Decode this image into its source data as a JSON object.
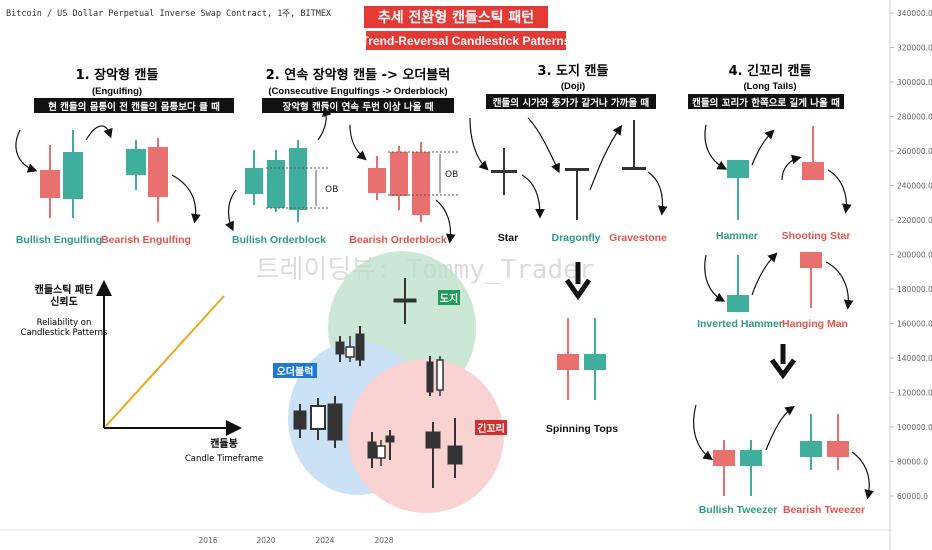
{
  "header": {
    "symbol_line": "Bitcoin / US Dollar Perpetual Inverse Swap Contract, 1주, BITMEX",
    "title_ko": "추세 전환형 캔들스틱 패턴",
    "title_en": "Trend-Reversal Candlestick Patterns"
  },
  "watermark": "트레이딩뷰: Tommy_Trader",
  "colors": {
    "bull": "#3fae9c",
    "bear": "#e8706e",
    "title_bg": "#e53935",
    "green_label": "#2e9c88",
    "red_label": "#e5554d",
    "line_orange": "#f5a31a",
    "venn_green": "#b9dfc6",
    "venn_blue": "#b7d6f3",
    "venn_red": "#f7c1c1"
  },
  "sections": [
    {
      "heading": "1. 장악형 캔들",
      "sub": "(Engulfing)",
      "desc": "현 캔들의 몸통이 전 캔들의 몸통보다 클 때",
      "labels": [
        "Bullish Engulfing",
        "Bearish Engulfing"
      ]
    },
    {
      "heading": "2. 연속 장악형 캔들 -> 오더블럭",
      "sub": "(Consecutive Engulfings -> Orderblock)",
      "desc": "장악형 캔들이 연속 두번 이상 나올 때",
      "labels": [
        "Bullish Orderblock",
        "Bearish Orderblock"
      ],
      "ob": "OB"
    },
    {
      "heading": "3. 도지 캔들",
      "sub": "(Doji)",
      "desc": "캔들의 시가와 종가가 같거나 가까울 때",
      "labels": [
        "Star",
        "Dragonfly",
        "Gravestone"
      ],
      "spinning": "Spinning Tops"
    },
    {
      "heading": "4. 긴꼬리 캔들",
      "sub": "(Long Tails)",
      "desc": "캔들의 꼬리가 한쪽으로 길게 나올 때",
      "labels": [
        "Hammer",
        "Shooting Star",
        "Inverted Hammer",
        "Hanging Man",
        "Bullish Tweezer",
        "Bearish Tweezer"
      ]
    }
  ],
  "reliability": {
    "ylabel_ko": "캔들스틱 패턴\n신뢰도",
    "ylabel_en": "Reliability on\nCandlestick Patterns",
    "xlabel_ko": "캔들봉",
    "xlabel_en": "Candle Timeframe"
  },
  "venn": {
    "doji": "도지",
    "orderblock": "오더블럭",
    "longtail": "긴꼬리"
  },
  "chart_data": {
    "type": "line",
    "title": "",
    "x_ticks": [
      "2016",
      "2020",
      "2024",
      "2028"
    ],
    "y_ticks": [
      "340000.0",
      "320000.0",
      "300000.0",
      "280000.0",
      "260000.0",
      "240000.0",
      "220000.0",
      "200000.0",
      "180000.0",
      "160000.0",
      "140000.0",
      "120000.0",
      "100000.0",
      "80000.0",
      "60000.0"
    ],
    "y_axis_side": "right",
    "series": [],
    "grid": false
  }
}
